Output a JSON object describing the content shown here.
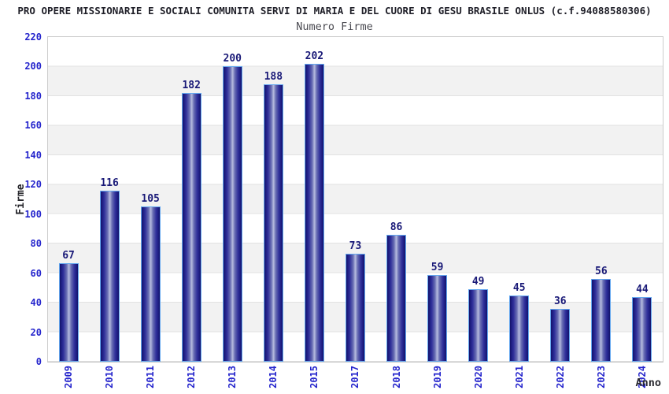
{
  "title": "PRO OPERE MISSIONARIE E SOCIALI COMUNITA SERVI DI MARIA E DEL CUORE DI GESU BRASILE ONLUS (c.f.94088580306)",
  "subtitle": "Numero Firme",
  "chart_data": {
    "type": "bar",
    "title": "Numero Firme",
    "categories": [
      "2009",
      "2010",
      "2011",
      "2012",
      "2013",
      "2014",
      "2015",
      "2017",
      "2018",
      "2019",
      "2020",
      "2021",
      "2022",
      "2023",
      "2024"
    ],
    "values": [
      67,
      116,
      105,
      182,
      200,
      188,
      202,
      73,
      86,
      59,
      49,
      45,
      36,
      56,
      44
    ],
    "xlabel": "Anno",
    "ylabel": "Firme",
    "ylim": [
      0,
      220
    ],
    "ytick_step": 20,
    "grid": "horizontal alternating bands every 20 units",
    "legend": "none",
    "colors": {
      "bar_dark": "#14146a",
      "bar_light": "#b7bcdf",
      "bar_border": "#64a8f0",
      "axis_tick_label": "#2424cc",
      "value_label": "#1a1a78",
      "band_gray": "#f2f2f2",
      "plot_border": "#cccccc",
      "title_color": "#1f1f28",
      "subtitle_color": "#4b4b52"
    }
  }
}
